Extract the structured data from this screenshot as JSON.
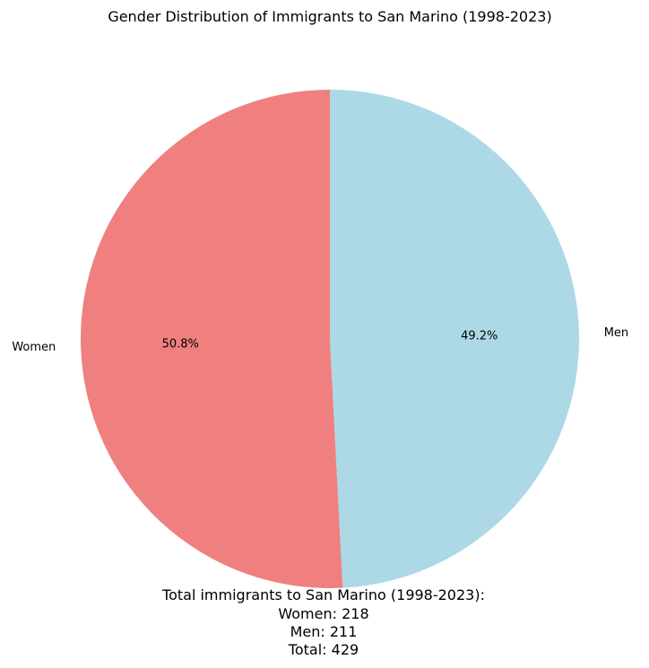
{
  "chart_data": {
    "type": "pie",
    "title": "Gender Distribution of Immigrants to San Marino (1998-2023)",
    "categories": [
      "Men",
      "Women"
    ],
    "values": [
      211,
      218
    ],
    "percent_labels": [
      "49.2%",
      "50.8%"
    ],
    "colors": [
      "#add8e6",
      "#f08080"
    ],
    "start_angle_deg": 90,
    "direction": "clockwise"
  },
  "summary": {
    "heading": "Total immigrants to San Marino (1998-2023):",
    "women": "Women: 218",
    "men": "Men: 211",
    "total": "Total: 429"
  }
}
